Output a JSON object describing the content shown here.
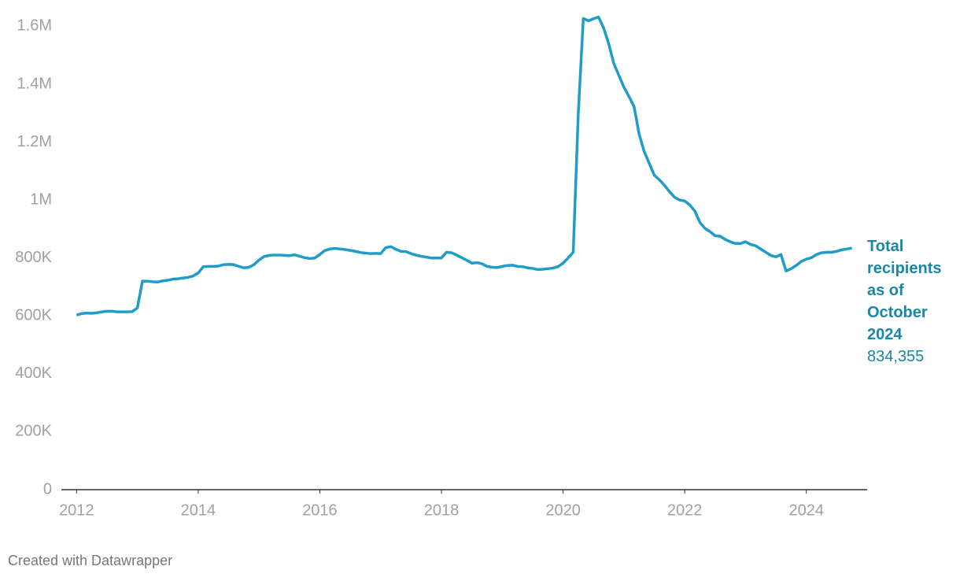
{
  "chart_data": {
    "type": "line",
    "x": [
      2012,
      2012.083,
      2012.167,
      2012.25,
      2012.333,
      2012.417,
      2012.5,
      2012.583,
      2012.667,
      2012.75,
      2012.833,
      2012.917,
      2013,
      2013.083,
      2013.167,
      2013.25,
      2013.333,
      2013.417,
      2013.5,
      2013.583,
      2013.667,
      2013.75,
      2013.833,
      2013.917,
      2014,
      2014.083,
      2014.167,
      2014.25,
      2014.333,
      2014.417,
      2014.5,
      2014.583,
      2014.667,
      2014.75,
      2014.833,
      2014.917,
      2015,
      2015.083,
      2015.167,
      2015.25,
      2015.333,
      2015.417,
      2015.5,
      2015.583,
      2015.667,
      2015.75,
      2015.833,
      2015.917,
      2016,
      2016.083,
      2016.167,
      2016.25,
      2016.333,
      2016.417,
      2016.5,
      2016.583,
      2016.667,
      2016.75,
      2016.833,
      2016.917,
      2017,
      2017.083,
      2017.167,
      2017.25,
      2017.333,
      2017.417,
      2017.5,
      2017.583,
      2017.667,
      2017.75,
      2017.833,
      2017.917,
      2018,
      2018.083,
      2018.167,
      2018.25,
      2018.333,
      2018.417,
      2018.5,
      2018.583,
      2018.667,
      2018.75,
      2018.833,
      2018.917,
      2019,
      2019.083,
      2019.167,
      2019.25,
      2019.333,
      2019.417,
      2019.5,
      2019.583,
      2019.667,
      2019.75,
      2019.833,
      2019.917,
      2020,
      2020.083,
      2020.167,
      2020.25,
      2020.333,
      2020.417,
      2020.5,
      2020.583,
      2020.667,
      2020.75,
      2020.833,
      2020.917,
      2021,
      2021.083,
      2021.167,
      2021.25,
      2021.333,
      2021.417,
      2021.5,
      2021.583,
      2021.667,
      2021.75,
      2021.833,
      2021.917,
      2022,
      2022.083,
      2022.167,
      2022.25,
      2022.333,
      2022.417,
      2022.5,
      2022.583,
      2022.667,
      2022.75,
      2022.833,
      2022.917,
      2023,
      2023.083,
      2023.167,
      2023.25,
      2023.333,
      2023.417,
      2023.5,
      2023.583,
      2023.667,
      2023.75,
      2023.833,
      2023.917,
      2024,
      2024.083,
      2024.167,
      2024.25,
      2024.333,
      2024.417,
      2024.5,
      2024.583,
      2024.667,
      2024.75
    ],
    "values": [
      603000,
      608000,
      610000,
      609000,
      611000,
      614000,
      616000,
      616000,
      614000,
      614000,
      614000,
      615000,
      628000,
      720000,
      720000,
      718000,
      717000,
      721000,
      723000,
      727000,
      728000,
      731000,
      733000,
      738000,
      748000,
      770000,
      771000,
      771000,
      772000,
      777000,
      778000,
      777000,
      771000,
      766000,
      768000,
      777000,
      793000,
      805000,
      809000,
      810000,
      810000,
      809000,
      808000,
      811000,
      806000,
      801000,
      798000,
      800000,
      812000,
      826000,
      831000,
      833000,
      831000,
      829000,
      826000,
      823000,
      819000,
      817000,
      815000,
      816000,
      815000,
      836000,
      839000,
      830000,
      823000,
      822000,
      815000,
      810000,
      806000,
      803000,
      800000,
      800000,
      800000,
      820000,
      818000,
      810000,
      801000,
      792000,
      782000,
      784000,
      780000,
      771000,
      768000,
      767000,
      771000,
      774000,
      775000,
      771000,
      770000,
      766000,
      764000,
      760000,
      761000,
      763000,
      765000,
      770000,
      782000,
      800000,
      820000,
      1300000,
      1627000,
      1619000,
      1626000,
      1632000,
      1594000,
      1540000,
      1472000,
      1431000,
      1390000,
      1358000,
      1323000,
      1228000,
      1168000,
      1127000,
      1086000,
      1070000,
      1051000,
      1029000,
      1010000,
      1000000,
      997000,
      983000,
      962000,
      923000,
      902000,
      891000,
      877000,
      875000,
      864000,
      856000,
      850000,
      850000,
      856000,
      847000,
      842000,
      831000,
      820000,
      809000,
      804000,
      812000,
      755000,
      763000,
      774000,
      788000,
      796000,
      801000,
      812000,
      818000,
      820000,
      820000,
      823000,
      828000,
      831000,
      834355
    ],
    "color": "#1f9dc8",
    "xlim": [
      2011.75,
      2025
    ],
    "xticks": [
      2012,
      2014,
      2016,
      2018,
      2020,
      2022,
      2024
    ],
    "ylim": [
      0,
      1650000
    ],
    "yticks": [
      0,
      {
        "value": 200000,
        "label": "200K"
      },
      {
        "value": 400000,
        "label": "400K"
      },
      {
        "value": 600000,
        "label": "600K"
      },
      {
        "value": 800000,
        "label": "800K"
      },
      {
        "value": 1000000,
        "label": "1M"
      },
      {
        "value": 1200000,
        "label": "1.2M"
      },
      {
        "value": 1400000,
        "label": "1.4M"
      },
      {
        "value": 1600000,
        "label": "1.6M"
      }
    ],
    "grid": false,
    "annotation": {
      "title": "Total recipients as of October 2024",
      "label": "834,355"
    },
    "footer": "Created with Datawrapper"
  }
}
